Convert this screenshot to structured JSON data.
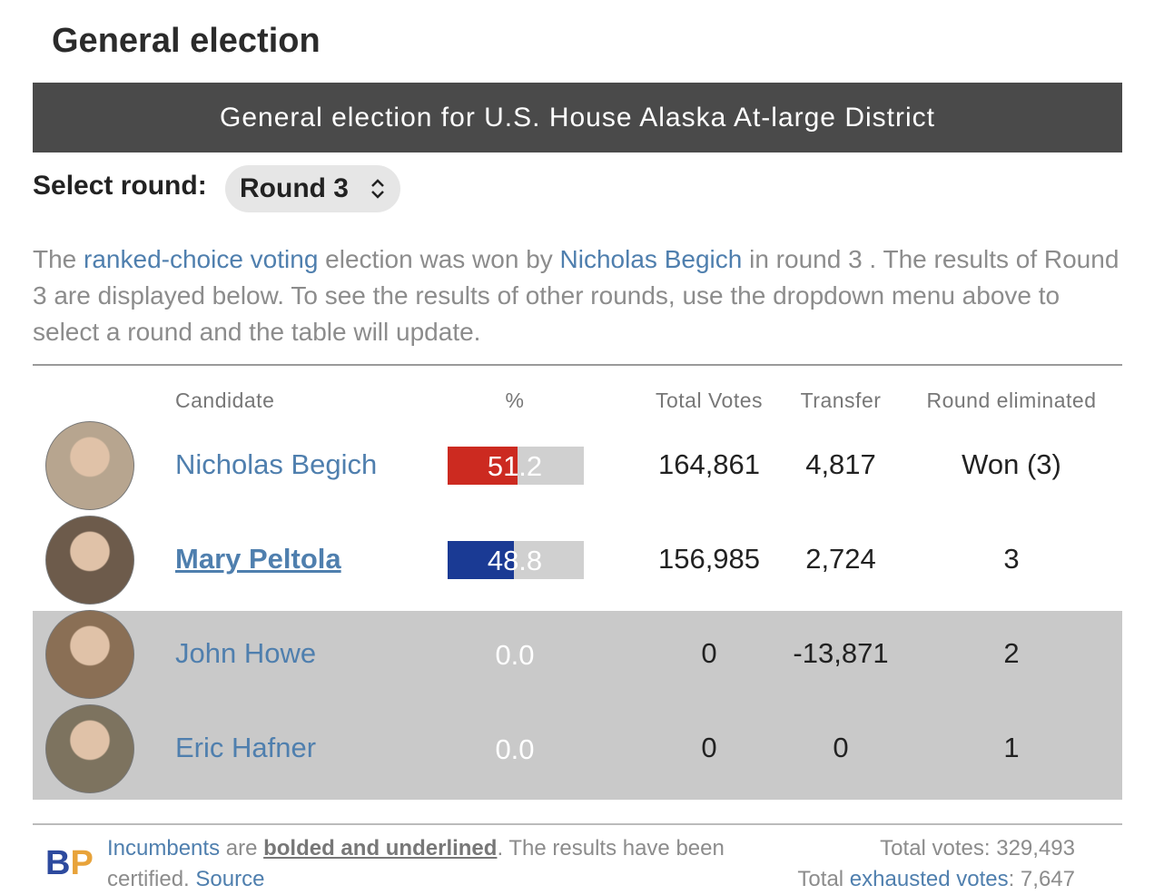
{
  "header": {
    "title": "General election",
    "banner": "General election for U.S. House Alaska At-large District"
  },
  "round_select": {
    "label": "Select round:",
    "value": "Round 3"
  },
  "description": [
    {
      "text": "The "
    },
    {
      "text": "ranked-choice voting",
      "link": true
    },
    {
      "text": " election was won by "
    },
    {
      "text": "Nicholas Begich",
      "link": true
    },
    {
      "text": " in round 3 . The results of Round 3 are displayed below. To see the results of other rounds, use the dropdown menu above to select a round and the table will update."
    }
  ],
  "table": {
    "columns": [
      "Candidate",
      "%",
      "Total Votes",
      "Transfer",
      "Round eliminated"
    ],
    "rows": [
      {
        "name": "Nicholas Begich",
        "percent": 51.2,
        "total_votes": "164,861",
        "transfer": "4,817",
        "round_eliminated": "Won (3)",
        "color": "#cc2a20"
      },
      {
        "name": "Mary Peltola",
        "percent": 48.8,
        "total_votes": "156,985",
        "transfer": "2,724",
        "round_eliminated": "3",
        "color": "#1a3a94",
        "incumbent": true
      },
      {
        "name": "John Howe",
        "percent": 0,
        "percent_label": "0.0",
        "total_votes": "0",
        "transfer": "-13,871",
        "round_eliminated": "2"
      },
      {
        "name": "Eric Hafner",
        "percent": 0,
        "percent_label": "0.0",
        "total_votes": "0",
        "transfer": "0",
        "round_eliminated": "1"
      }
    ]
  },
  "footer": {
    "logo": [
      "B",
      "P"
    ],
    "note": [
      {
        "text": "Incumbents",
        "link": true
      },
      {
        "text": " are "
      },
      {
        "text": "bolded and underlined",
        "bold": true
      },
      {
        "text": ". The results have been certified. "
      },
      {
        "text": "Source",
        "link": true
      }
    ],
    "total_votes": "Total votes: 329,493",
    "exhausted": [
      {
        "text": "Total "
      },
      {
        "text": "exhausted votes",
        "link": true
      },
      {
        "text": ": 7,647"
      }
    ]
  }
}
